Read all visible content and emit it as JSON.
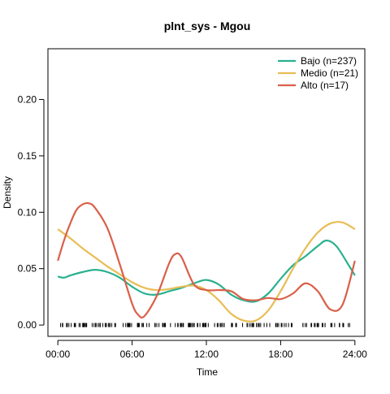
{
  "chart_data": {
    "type": "line",
    "title": "plnt_sys - Mgou",
    "xlabel": "Time",
    "ylabel": "Density",
    "xlim": [
      -0.8,
      24.8
    ],
    "ylim": [
      -0.01,
      0.245
    ],
    "x_ticks": [
      {
        "value": 0,
        "label": "00:00"
      },
      {
        "value": 6,
        "label": "06:00"
      },
      {
        "value": 12,
        "label": "12:00"
      },
      {
        "value": 18,
        "label": "18:00"
      },
      {
        "value": 24,
        "label": "24:00"
      }
    ],
    "y_ticks": [
      {
        "value": 0.0,
        "label": "0.00"
      },
      {
        "value": 0.05,
        "label": "0.05"
      },
      {
        "value": 0.1,
        "label": "0.10"
      },
      {
        "value": 0.15,
        "label": "0.15"
      },
      {
        "value": 0.2,
        "label": "0.20"
      }
    ],
    "grid": false,
    "legend": "top-right",
    "series": [
      {
        "name": "Bajo (n=237)",
        "color": "#2ab08f",
        "x": [
          0,
          0.5,
          1,
          2,
          3,
          4,
          5,
          6,
          7,
          8,
          9,
          10,
          11,
          12,
          13,
          14,
          15,
          16,
          17,
          18,
          19,
          20,
          21,
          21.7,
          22.5,
          23.5,
          24
        ],
        "y": [
          0.043,
          0.042,
          0.044,
          0.047,
          0.049,
          0.047,
          0.042,
          0.034,
          0.028,
          0.027,
          0.03,
          0.033,
          0.037,
          0.04,
          0.036,
          0.027,
          0.022,
          0.021,
          0.028,
          0.041,
          0.053,
          0.061,
          0.07,
          0.075,
          0.07,
          0.053,
          0.044
        ]
      },
      {
        "name": "Medio (n=21)",
        "color": "#e8bd55",
        "x": [
          0,
          1,
          2,
          3,
          4,
          5,
          6,
          7,
          8,
          9,
          10,
          11,
          12,
          13,
          14,
          15,
          16,
          17,
          18,
          19,
          20,
          21,
          22,
          23,
          24
        ],
        "y": [
          0.085,
          0.077,
          0.068,
          0.06,
          0.052,
          0.045,
          0.038,
          0.033,
          0.031,
          0.032,
          0.034,
          0.035,
          0.031,
          0.022,
          0.01,
          0.004,
          0.004,
          0.013,
          0.03,
          0.05,
          0.068,
          0.082,
          0.09,
          0.091,
          0.085
        ]
      },
      {
        "name": "Alto (n=17)",
        "color": "#d9604a",
        "x": [
          0,
          0.5,
          1,
          1.5,
          2,
          2.5,
          3,
          4,
          5,
          6,
          6.5,
          7,
          8,
          9,
          9.5,
          10,
          11,
          12,
          13,
          14,
          15,
          16,
          17,
          18,
          19,
          20,
          21,
          22,
          23,
          24
        ],
        "y": [
          0.057,
          0.075,
          0.09,
          0.102,
          0.107,
          0.108,
          0.104,
          0.086,
          0.054,
          0.019,
          0.009,
          0.008,
          0.026,
          0.055,
          0.063,
          0.06,
          0.036,
          0.031,
          0.031,
          0.03,
          0.023,
          0.022,
          0.024,
          0.023,
          0.028,
          0.037,
          0.03,
          0.014,
          0.018,
          0.057
        ]
      }
    ]
  }
}
